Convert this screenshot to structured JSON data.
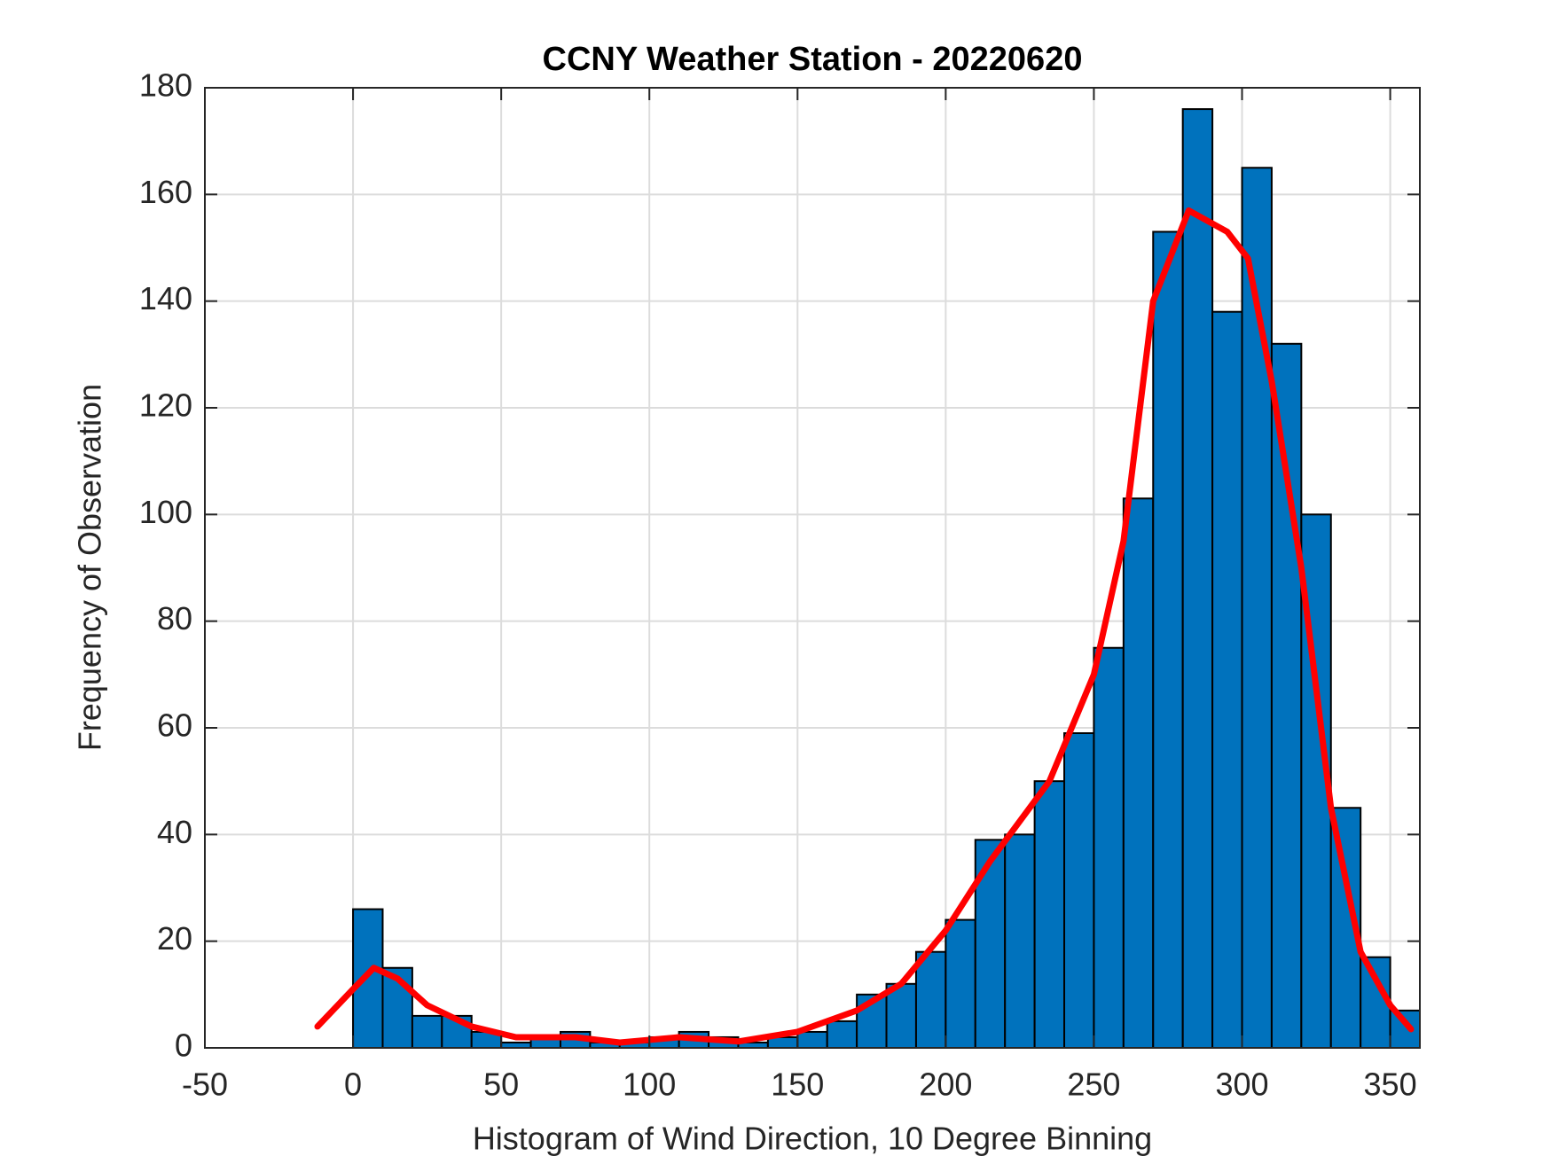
{
  "chart_data": {
    "type": "histogram",
    "title": "CCNY Weather Station - 20220620",
    "xlabel": "Histogram of Wind Direction, 10 Degree Binning",
    "ylabel": "Frequency of Observation",
    "bins": [
      0,
      10,
      20,
      30,
      40,
      50,
      60,
      70,
      80,
      90,
      100,
      110,
      120,
      130,
      140,
      150,
      160,
      170,
      180,
      190,
      200,
      210,
      220,
      230,
      240,
      250,
      260,
      270,
      280,
      290,
      300,
      310,
      320,
      330,
      340,
      350,
      360
    ],
    "counts": [
      26,
      15,
      6,
      6,
      3,
      1,
      2,
      3,
      1,
      1,
      2,
      3,
      2,
      1,
      2,
      3,
      5,
      10,
      12,
      18,
      24,
      39,
      40,
      50,
      59,
      75,
      103,
      153,
      176,
      138,
      165,
      132,
      100,
      45,
      17,
      7
    ],
    "color": "#0072bd",
    "curve": {
      "color": "#ff0000",
      "x": [
        -12,
        0,
        7,
        15,
        25,
        40,
        55,
        75,
        90,
        110,
        130,
        150,
        170,
        185,
        200,
        215,
        235,
        250,
        260,
        270,
        282,
        295,
        302,
        310,
        320,
        330,
        340,
        350,
        357
      ],
      "values": [
        4,
        11,
        15,
        13,
        8,
        4,
        2,
        2,
        1,
        2,
        1.2,
        3,
        7,
        12,
        22,
        35,
        50,
        70,
        95,
        140,
        157,
        153,
        148,
        125,
        90,
        45,
        18,
        8,
        3.5
      ]
    },
    "xlim": [
      -50,
      360
    ],
    "xticks": [
      -50,
      0,
      50,
      100,
      150,
      200,
      250,
      300,
      350
    ],
    "ylim": [
      0,
      180
    ],
    "yticks": [
      0,
      20,
      40,
      60,
      80,
      100,
      120,
      140,
      160,
      180
    ],
    "grid": true
  }
}
